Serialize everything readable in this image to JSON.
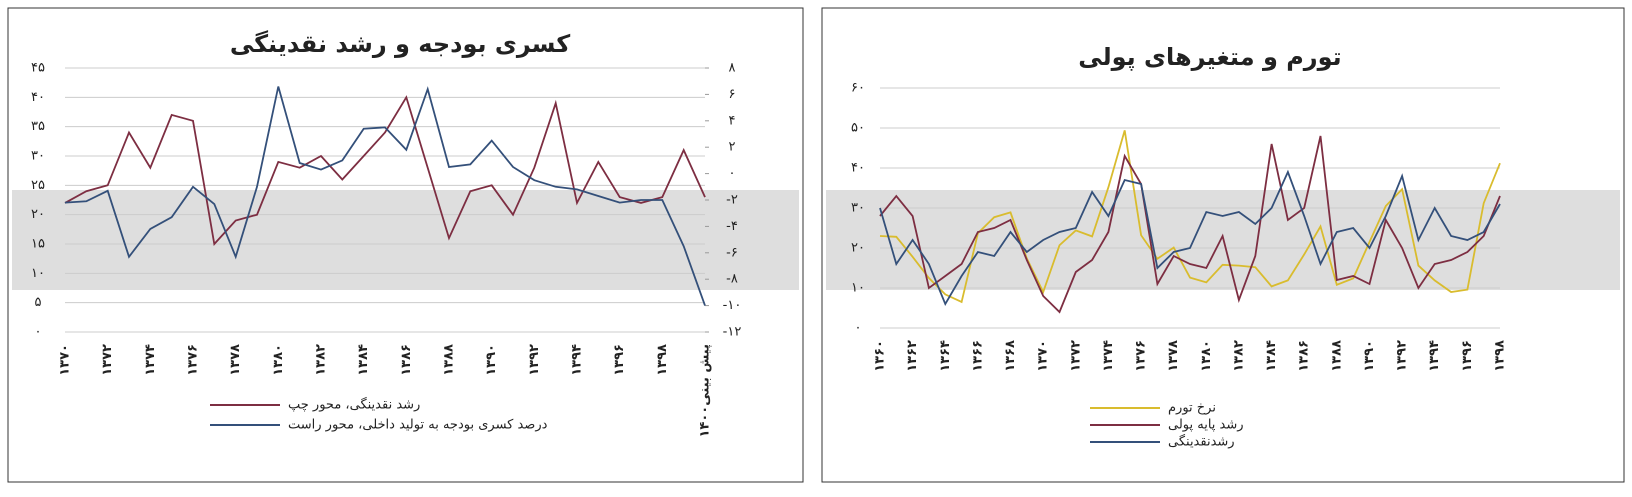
{
  "chart_data": [
    {
      "type": "line",
      "title": "کسری بودجه و رشد نقدینگی",
      "categories": [
        "۱۳۷۰",
        null,
        "۱۳۷۲",
        null,
        "۱۳۷۴",
        null,
        "۱۳۷۶",
        null,
        "۱۳۷۸",
        null,
        "۱۳۸۰",
        null,
        "۱۳۸۲",
        null,
        "۱۳۸۴",
        null,
        "۱۳۸۶",
        null,
        "۱۳۸۸",
        null,
        "۱۳۹۰",
        null,
        "۱۳۹۲",
        null,
        "۱۳۹۴",
        null,
        "۱۳۹۶",
        null,
        "۱۳۹۸",
        null,
        "۱۴۰۰پیش بینی"
      ],
      "series": [
        {
          "name": "رشد نقدینگی، محور چپ",
          "color": "#7d2e42",
          "values": [
            22,
            24,
            25,
            34,
            28,
            37,
            36,
            15,
            19,
            20,
            29,
            28,
            30,
            26,
            30,
            34,
            40,
            28,
            16,
            24,
            25,
            20,
            28,
            39,
            22,
            29,
            23,
            22,
            23,
            31,
            23
          ]
        },
        {
          "name": "درصد کسری بودجه به تولید داخلی، محور راست",
          "color": "#34507a",
          "axis": "y2",
          "values": [
            -2.2,
            -2.1,
            -1.3,
            -6.3,
            -4.2,
            -3.3,
            -1.0,
            -2.3,
            -6.3,
            -1.0,
            6.6,
            0.8,
            0.3,
            1.0,
            3.4,
            3.5,
            1.8,
            6.4,
            0.5,
            0.7,
            2.5,
            0.5,
            -0.5,
            -1.0,
            -1.2,
            -1.7,
            -2.2,
            -2.0,
            -2.0,
            -5.5,
            -10
          ]
        }
      ],
      "ylim": [
        0,
        45
      ],
      "yticks": [
        {
          "value": 0,
          "label": "۰"
        },
        {
          "value": 5,
          "label": "۵"
        },
        {
          "value": 10,
          "label": "۱۰"
        },
        {
          "value": 15,
          "label": "۱۵"
        },
        {
          "value": 20,
          "label": "۲۰"
        },
        {
          "value": 25,
          "label": "۲۵"
        },
        {
          "value": 30,
          "label": "۳۰"
        },
        {
          "value": 35,
          "label": "۳۵"
        },
        {
          "value": 40,
          "label": "۴۰"
        },
        {
          "value": 45,
          "label": "۴۵"
        }
      ],
      "y2lim": [
        -12,
        8
      ],
      "y2ticks": [
        {
          "value": -12,
          "label": "-۱۲"
        },
        {
          "value": -10,
          "label": "-۱۰"
        },
        {
          "value": -8,
          "label": "-۸"
        },
        {
          "value": -6,
          "label": "-۶"
        },
        {
          "value": -4,
          "label": "-۴"
        },
        {
          "value": -2,
          "label": "-۲"
        },
        {
          "value": 0,
          "label": "۰"
        },
        {
          "value": 2,
          "label": "۲"
        },
        {
          "value": 4,
          "label": "۴"
        },
        {
          "value": 6,
          "label": "۶"
        },
        {
          "value": 8,
          "label": "۸"
        }
      ],
      "grid": true
    },
    {
      "type": "line",
      "title": "تورم و متغیرهای پولی",
      "categories": [
        "۱۳۶۰",
        null,
        "۱۳۶۲",
        null,
        "۱۳۶۴",
        null,
        "۱۳۶۶",
        null,
        "۱۳۶۸",
        null,
        "۱۳۷۰",
        null,
        "۱۳۷۲",
        null,
        "۱۳۷۴",
        null,
        "۱۳۷۶",
        null,
        "۱۳۷۸",
        null,
        "۱۳۸۰",
        null,
        "۱۳۸۲",
        null,
        "۱۳۸۴",
        null,
        "۱۳۸۶",
        null,
        "۱۳۸۸",
        null,
        "۱۳۹۰",
        null,
        "۱۳۹۲",
        null,
        "۱۳۹۴",
        null,
        "۱۳۹۶",
        null,
        "۱۳۹۸"
      ],
      "series": [
        {
          "name": "نرخ تورم",
          "color": "#d9bc2e",
          "values": [
            23,
            22.8,
            17.8,
            12.5,
            8.4,
            6.5,
            23.7,
            27.7,
            28.9,
            17.4,
            9,
            20.7,
            24.4,
            22.9,
            35.2,
            49.4,
            23.2,
            17.3,
            20.1,
            12.6,
            11.4,
            15.8,
            15.6,
            15.2,
            10.4,
            11.9,
            18.4,
            25.4,
            10.8,
            12.4,
            21.5,
            30.5,
            34.7,
            15.6,
            11.9,
            9,
            9.6,
            31.2,
            41.2
          ]
        },
        {
          "name": "رشد پایه پولی",
          "color": "#7d2e42",
          "values": [
            28,
            33,
            28,
            10,
            13,
            16,
            24,
            25,
            27,
            17,
            8,
            4,
            14,
            17,
            24,
            43,
            36,
            11,
            18,
            16,
            15,
            23,
            7,
            18,
            46,
            27,
            30,
            48,
            12,
            13,
            11,
            27,
            20,
            10,
            16,
            17,
            19,
            23,
            33
          ]
        },
        {
          "name": "رشدنقدینگی",
          "color": "#34507a",
          "values": [
            30,
            16,
            22,
            16,
            6,
            13,
            19,
            18,
            24,
            19,
            22,
            24,
            25,
            34,
            28,
            37,
            36,
            15,
            19,
            20,
            29,
            28,
            29,
            26,
            30,
            39,
            28,
            16,
            24,
            25,
            20,
            28,
            38,
            22,
            30,
            23,
            22,
            24,
            31
          ]
        }
      ],
      "ylim": [
        0,
        60
      ],
      "yticks": [
        {
          "value": 0,
          "label": "۰"
        },
        {
          "value": 10,
          "label": "۱۰"
        },
        {
          "value": 20,
          "label": "۲۰"
        },
        {
          "value": 30,
          "label": "۳۰"
        },
        {
          "value": 40,
          "label": "۴۰"
        },
        {
          "value": 50,
          "label": "۵۰"
        },
        {
          "value": 60,
          "label": "۶۰"
        }
      ],
      "grid": true
    }
  ]
}
